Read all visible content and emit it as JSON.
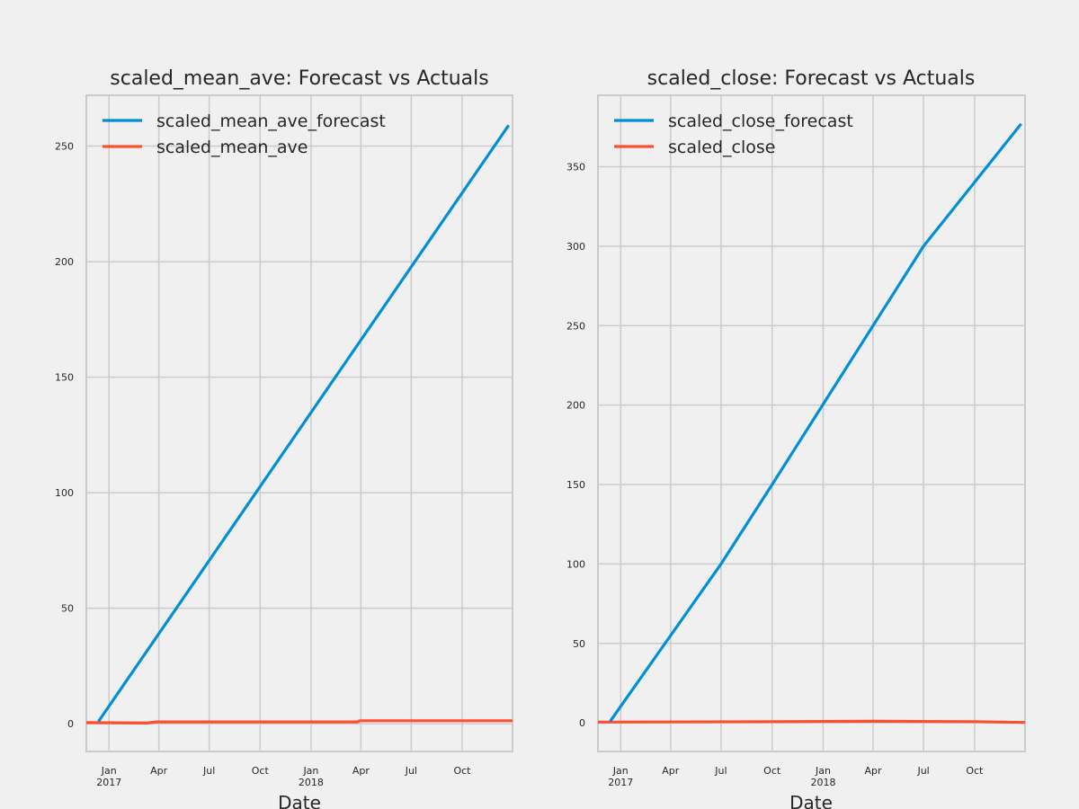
{
  "chart_data": [
    {
      "type": "line",
      "title": "scaled_mean_ave: Forecast vs Actuals",
      "xlabel": "Date",
      "ylabel": "",
      "xlim": [
        "2016-11-21",
        "2018-12-31"
      ],
      "ylim": [
        -12,
        272
      ],
      "yticks": [
        0,
        50,
        100,
        150,
        200,
        250
      ],
      "xticks": [
        {
          "date": "2017-01-01",
          "label": "Jan",
          "sublabel": "2017"
        },
        {
          "date": "2017-04-01",
          "label": "Apr",
          "sublabel": ""
        },
        {
          "date": "2017-07-01",
          "label": "Jul",
          "sublabel": ""
        },
        {
          "date": "2017-10-01",
          "label": "Oct",
          "sublabel": ""
        },
        {
          "date": "2018-01-01",
          "label": "Jan",
          "sublabel": "2018"
        },
        {
          "date": "2018-04-01",
          "label": "Apr",
          "sublabel": ""
        },
        {
          "date": "2018-07-01",
          "label": "Jul",
          "sublabel": ""
        },
        {
          "date": "2018-10-01",
          "label": "Oct",
          "sublabel": ""
        }
      ],
      "grid": true,
      "legend": "top-left",
      "series": [
        {
          "name": "scaled_mean_ave_forecast",
          "color": "#008fd5",
          "points": [
            [
              "2016-12-13",
              1
            ],
            [
              "2018-12-24",
              259
            ]
          ]
        },
        {
          "name": "scaled_mean_ave",
          "color": "#fc4f30",
          "points": [
            [
              "2016-11-21",
              0.5
            ],
            [
              "2017-03-10",
              0.3
            ],
            [
              "2017-03-28",
              0.8
            ],
            [
              "2018-03-26",
              0.8
            ],
            [
              "2018-03-30",
              1.3
            ],
            [
              "2018-12-31",
              1.3
            ]
          ]
        }
      ]
    },
    {
      "type": "line",
      "title": "scaled_close: Forecast vs Actuals",
      "xlabel": "Date",
      "ylabel": "",
      "xlim": [
        "2016-11-21",
        "2018-12-31"
      ],
      "ylim": [
        -18,
        395
      ],
      "yticks": [
        0,
        50,
        100,
        150,
        200,
        250,
        300,
        350
      ],
      "xticks": [
        {
          "date": "2017-01-01",
          "label": "Jan",
          "sublabel": "2017"
        },
        {
          "date": "2017-04-01",
          "label": "Apr",
          "sublabel": ""
        },
        {
          "date": "2017-07-01",
          "label": "Jul",
          "sublabel": ""
        },
        {
          "date": "2017-10-01",
          "label": "Oct",
          "sublabel": ""
        },
        {
          "date": "2018-01-01",
          "label": "Jan",
          "sublabel": "2018"
        },
        {
          "date": "2018-04-01",
          "label": "Apr",
          "sublabel": ""
        },
        {
          "date": "2018-07-01",
          "label": "Jul",
          "sublabel": ""
        },
        {
          "date": "2018-10-01",
          "label": "Oct",
          "sublabel": ""
        }
      ],
      "grid": true,
      "legend": "top-left",
      "series": [
        {
          "name": "scaled_close_forecast",
          "color": "#008fd5",
          "points": [
            [
              "2016-12-13",
              1
            ],
            [
              "2017-07-01",
              100
            ],
            [
              "2017-10-01",
              150
            ],
            [
              "2018-07-01",
              300
            ],
            [
              "2018-12-24",
              377
            ]
          ]
        },
        {
          "name": "scaled_close",
          "color": "#fc4f30",
          "points": [
            [
              "2016-11-21",
              0.5
            ],
            [
              "2017-10-01",
              0.8
            ],
            [
              "2018-04-01",
              1.0
            ],
            [
              "2018-10-01",
              0.8
            ],
            [
              "2018-12-31",
              0.3
            ]
          ]
        }
      ]
    }
  ]
}
